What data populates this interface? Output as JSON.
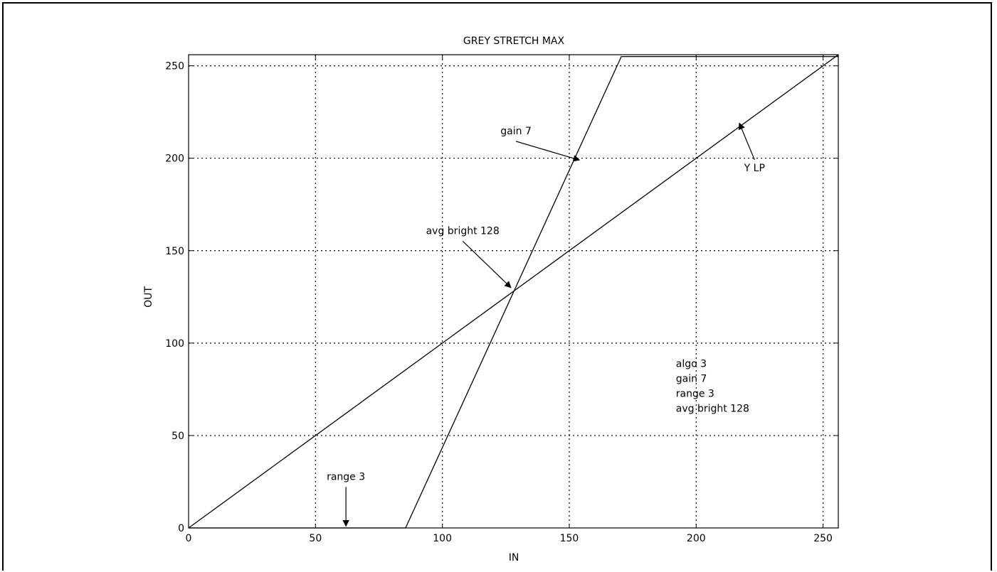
{
  "chart_data": {
    "type": "line",
    "title": "GREY STRETCH MAX",
    "xlabel": "IN",
    "ylabel": "OUT",
    "xlim": [
      0,
      256
    ],
    "ylim": [
      0,
      256
    ],
    "xticks": [
      0,
      50,
      100,
      150,
      200,
      250
    ],
    "yticks": [
      0,
      50,
      100,
      150,
      200,
      250
    ],
    "grid": true,
    "series": [
      {
        "name": "Y LP",
        "x": [
          0,
          256
        ],
        "y": [
          0,
          256
        ]
      },
      {
        "name": "gain 7",
        "x": [
          0,
          85.5,
          170.5,
          256
        ],
        "y": [
          0,
          0,
          255,
          255
        ]
      }
    ],
    "annotations": [
      {
        "text": "gain 7",
        "text_at": [
          129,
          213
        ],
        "arrow_to": [
          154,
          199
        ]
      },
      {
        "text": "avg bright 128",
        "text_at": [
          108,
          159
        ],
        "arrow_to": [
          127,
          130
        ]
      },
      {
        "text": "Y LP",
        "text_at": [
          223,
          193
        ],
        "arrow_to": [
          217,
          219
        ]
      },
      {
        "text": "range 3",
        "text_at": [
          62,
          26
        ],
        "arrow_to": [
          62,
          1
        ]
      }
    ],
    "info_box": [
      "algo 3",
      "gain 7",
      "range 3",
      "avg bright 128"
    ],
    "colors": {
      "line": "#000000",
      "grid": "#000000",
      "background": "#ffffff"
    }
  }
}
